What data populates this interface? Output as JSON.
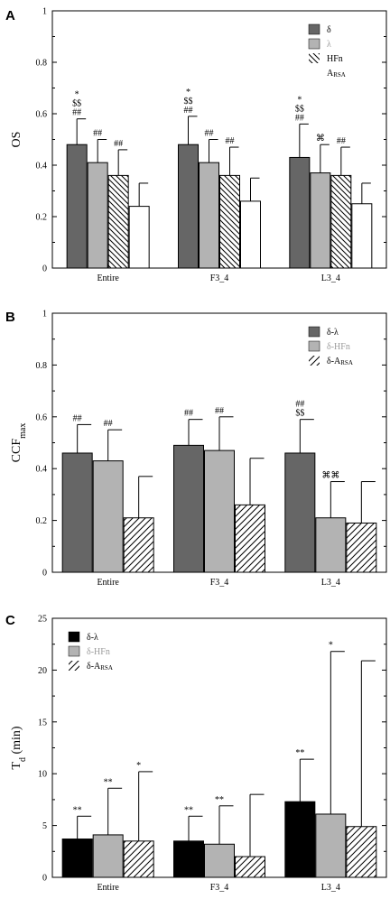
{
  "chart_data": [
    {
      "panel": "A",
      "type": "bar",
      "ylabel": "OS",
      "ylabel_sub": "",
      "ylim": [
        0,
        1
      ],
      "yticks": [
        0,
        0.2,
        0.4,
        0.6,
        0.8,
        1
      ],
      "ytick_labels": [
        "0",
        "0.2",
        "0.4",
        "0.6",
        "0.8",
        "1"
      ],
      "categories": [
        "Entire",
        "F3_4",
        "L3_4"
      ],
      "grid": false,
      "legend_position": "top-right",
      "series": [
        {
          "name": "δ",
          "legend_main": "δ",
          "legend_sub": "",
          "fill": "dark",
          "values": [
            0.48,
            0.48,
            0.43
          ],
          "errors": [
            0.1,
            0.11,
            0.13
          ],
          "annotations": [
            [
              "*",
              "$$",
              "##"
            ],
            [
              "*",
              "$$",
              "##"
            ],
            [
              "*",
              "$$",
              "##"
            ]
          ]
        },
        {
          "name": "λ",
          "legend_main": "λ",
          "legend_sub": "",
          "fill": "light",
          "values": [
            0.41,
            0.41,
            0.37
          ],
          "errors": [
            0.09,
            0.09,
            0.11
          ],
          "annotations": [
            [
              "##"
            ],
            [
              "##"
            ],
            [
              "⌘"
            ]
          ]
        },
        {
          "name": "HFn",
          "legend_main": "HFn",
          "legend_sub": "",
          "fill": "hatch-back",
          "values": [
            0.36,
            0.36,
            0.36
          ],
          "errors": [
            0.1,
            0.11,
            0.11
          ],
          "annotations": [
            [
              "##"
            ],
            [
              "##"
            ],
            [
              "##"
            ]
          ]
        },
        {
          "name": "ARSA",
          "legend_main": "A",
          "legend_sub": "RSA",
          "fill": "white",
          "values": [
            0.24,
            0.26,
            0.25
          ],
          "errors": [
            0.09,
            0.09,
            0.08
          ],
          "annotations": [
            [],
            [],
            []
          ]
        }
      ]
    },
    {
      "panel": "B",
      "type": "bar",
      "ylabel": "CCF",
      "ylabel_sub": "max",
      "ylim": [
        0,
        1
      ],
      "yticks": [
        0,
        0.2,
        0.4,
        0.6,
        0.8,
        1
      ],
      "ytick_labels": [
        "0",
        "0.2",
        "0.4",
        "0.6",
        "0.8",
        "1"
      ],
      "categories": [
        "Entire",
        "F3_4",
        "L3_4"
      ],
      "grid": false,
      "legend_position": "top-right",
      "series": [
        {
          "name": "δ-λ",
          "legend_main": "δ-λ",
          "legend_sub": "",
          "fill": "dark",
          "values": [
            0.46,
            0.49,
            0.46
          ],
          "errors": [
            0.11,
            0.1,
            0.13
          ],
          "annotations": [
            [
              "##"
            ],
            [
              "##"
            ],
            [
              "##",
              "$$"
            ]
          ]
        },
        {
          "name": "δ-HFn",
          "legend_main": "δ-HFn",
          "legend_sub": "",
          "fill": "light",
          "values": [
            0.43,
            0.47,
            0.21
          ],
          "errors": [
            0.12,
            0.13,
            0.14
          ],
          "annotations": [
            [
              "##"
            ],
            [
              "##"
            ],
            [
              "⌘⌘"
            ]
          ]
        },
        {
          "name": "δ-ARSA",
          "legend_main": "δ-A",
          "legend_sub": "RSA",
          "fill": "hatch-fwd",
          "values": [
            0.21,
            0.26,
            0.19
          ],
          "errors": [
            0.16,
            0.18,
            0.16
          ],
          "annotations": [
            [],
            [],
            []
          ]
        }
      ]
    },
    {
      "panel": "C",
      "type": "bar",
      "ylabel": "T",
      "ylabel_sub": "d",
      "ylabel_suffix": " (min)",
      "ylim": [
        0,
        25
      ],
      "yticks": [
        0,
        5,
        10,
        15,
        20,
        25
      ],
      "ytick_labels": [
        "0",
        "5",
        "10",
        "15",
        "20",
        "25"
      ],
      "categories": [
        "Entire",
        "F3_4",
        "L3_4"
      ],
      "grid": false,
      "legend_position": "top-left",
      "series": [
        {
          "name": "δ-λ",
          "legend_main": "δ-λ",
          "legend_sub": "",
          "fill": "black",
          "values": [
            3.7,
            3.5,
            7.3
          ],
          "errors": [
            2.2,
            2.4,
            4.1
          ],
          "annotations": [
            [
              "**"
            ],
            [
              "**"
            ],
            [
              "**"
            ]
          ]
        },
        {
          "name": "δ-HFn",
          "legend_main": "δ-HFn",
          "legend_sub": "",
          "fill": "light",
          "values": [
            4.1,
            3.2,
            6.1
          ],
          "errors": [
            4.5,
            3.7,
            15.7
          ],
          "annotations": [
            [
              "**"
            ],
            [
              "**"
            ],
            [
              "*"
            ]
          ]
        },
        {
          "name": "δ-ARSA",
          "legend_main": "δ-A",
          "legend_sub": "RSA",
          "fill": "hatch-fwd",
          "values": [
            3.5,
            2.0,
            4.9
          ],
          "errors": [
            6.7,
            6.0,
            16.0
          ],
          "annotations": [
            [
              "*"
            ],
            [],
            []
          ]
        }
      ]
    }
  ]
}
